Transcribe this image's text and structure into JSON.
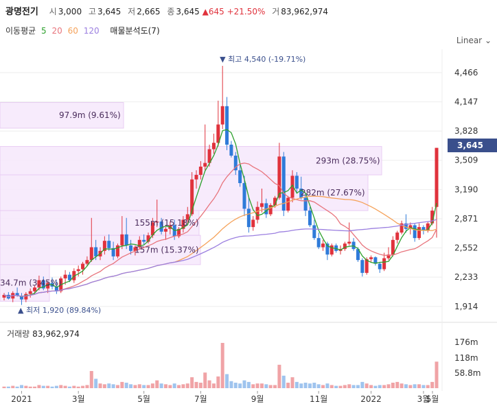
{
  "header": {
    "name": "광명전기",
    "open_label": "시",
    "open": "3,000",
    "high_label": "고",
    "high": "3,645",
    "low_label": "저",
    "low": "2,665",
    "close_label": "종",
    "close": "3,645",
    "change": "▲645",
    "change_pct": "+21.50%",
    "volume_label": "거",
    "volume": "83,962,974"
  },
  "ma_bar": {
    "label": "이동평균",
    "periods": [
      {
        "text": "5",
        "color": "#2ca02c"
      },
      {
        "text": "20",
        "color": "#e8747c"
      },
      {
        "text": "60",
        "color": "#f5a25a"
      },
      {
        "text": "120",
        "color": "#9b7fe0"
      }
    ],
    "extra": "매물분석도(7)"
  },
  "scale_mode": "Linear",
  "current_price": "3,645",
  "volume_panel": {
    "label": "거래량",
    "value": "83,962,974"
  },
  "chart_data": {
    "type": "candlestick",
    "y_ticks": [
      "4,466",
      "4,147",
      "3,828",
      "3,509",
      "3,190",
      "2,871",
      "2,552",
      "2,233",
      "1,914"
    ],
    "ylim": [
      1800,
      4720
    ],
    "x_ticks": [
      "2021",
      "3월",
      "5월",
      "7월",
      "9월",
      "11월",
      "2022",
      "3월",
      "5월"
    ],
    "volume_ticks": [
      "176m",
      "118m",
      "58.8m"
    ],
    "annotations": {
      "high": "최고 4,540 (-19.71%)",
      "low": "최저 1,920 (89.84%)"
    },
    "volume_profile": [
      {
        "label": "97.9m (9.61%)",
        "price_low": 3860,
        "price_high": 4140
      },
      {
        "label": "293m (28.75%)",
        "price_low": 3350,
        "price_high": 3660
      },
      {
        "label": "282m (27.67%)",
        "price_low": 2960,
        "price_high": 3350
      },
      {
        "label": "155m (15.18%)",
        "price_low": 2690,
        "price_high": 2960
      },
      {
        "label": "157m (15.37%)",
        "price_low": 2370,
        "price_high": 2690
      },
      {
        "label": "34.7m (3.45%)",
        "price_low": 1970,
        "price_high": 2370
      }
    ],
    "candles": [
      [
        2010,
        2060,
        1980,
        2040
      ],
      [
        2040,
        2070,
        1990,
        2000
      ],
      [
        2000,
        2080,
        1960,
        2060
      ],
      [
        2060,
        2120,
        2020,
        2030
      ],
      [
        2030,
        2060,
        1930,
        1990
      ],
      [
        1990,
        2070,
        1960,
        2050
      ],
      [
        2050,
        2110,
        2010,
        2080
      ],
      [
        2080,
        2140,
        2050,
        2120
      ],
      [
        2120,
        2250,
        2090,
        2200
      ],
      [
        2200,
        2240,
        2090,
        2110
      ],
      [
        2110,
        2190,
        2060,
        2170
      ],
      [
        2170,
        2230,
        2100,
        2130
      ],
      [
        2130,
        2200,
        2050,
        2080
      ],
      [
        2080,
        2240,
        2060,
        2220
      ],
      [
        2220,
        2310,
        2150,
        2260
      ],
      [
        2260,
        2290,
        2180,
        2200
      ],
      [
        2200,
        2330,
        2170,
        2300
      ],
      [
        2300,
        2360,
        2240,
        2320
      ],
      [
        2320,
        2400,
        2260,
        2380
      ],
      [
        2380,
        2460,
        2350,
        2420
      ],
      [
        2420,
        2880,
        2400,
        2560
      ],
      [
        2560,
        2640,
        2420,
        2460
      ],
      [
        2460,
        2560,
        2420,
        2520
      ],
      [
        2520,
        2680,
        2480,
        2630
      ],
      [
        2630,
        2700,
        2520,
        2550
      ],
      [
        2550,
        2620,
        2420,
        2460
      ],
      [
        2460,
        2600,
        2440,
        2580
      ],
      [
        2580,
        2900,
        2540,
        2700
      ],
      [
        2700,
        2880,
        2540,
        2580
      ],
      [
        2580,
        2640,
        2480,
        2520
      ],
      [
        2520,
        2580,
        2470,
        2560
      ],
      [
        2560,
        2680,
        2540,
        2640
      ],
      [
        2640,
        2700,
        2590,
        2620
      ],
      [
        2620,
        2720,
        2600,
        2690
      ],
      [
        2690,
        2880,
        2660,
        2830
      ],
      [
        2830,
        3080,
        2780,
        2840
      ],
      [
        2840,
        2880,
        2700,
        2730
      ],
      [
        2730,
        2780,
        2640,
        2760
      ],
      [
        2760,
        2840,
        2700,
        2800
      ],
      [
        2800,
        2860,
        2640,
        2680
      ],
      [
        2680,
        2780,
        2660,
        2760
      ],
      [
        2760,
        2900,
        2720,
        2860
      ],
      [
        2860,
        3000,
        2820,
        2920
      ],
      [
        2920,
        3380,
        2900,
        3300
      ],
      [
        3300,
        3400,
        3200,
        3350
      ],
      [
        3350,
        3500,
        3300,
        3440
      ],
      [
        3440,
        3900,
        3400,
        3480
      ],
      [
        3480,
        3680,
        3440,
        3630
      ],
      [
        3630,
        3800,
        3580,
        3700
      ],
      [
        3700,
        4160,
        3660,
        3900
      ],
      [
        3900,
        4540,
        3850,
        4100
      ],
      [
        4100,
        4200,
        3620,
        3680
      ],
      [
        3680,
        3720,
        3540,
        3560
      ],
      [
        3560,
        3600,
        3350,
        3400
      ],
      [
        3400,
        3460,
        3220,
        3260
      ],
      [
        3260,
        3340,
        2900,
        2980
      ],
      [
        2980,
        3100,
        2720,
        2780
      ],
      [
        2780,
        2900,
        2740,
        2860
      ],
      [
        2860,
        3060,
        2820,
        3000
      ],
      [
        3000,
        3200,
        2940,
        3040
      ],
      [
        3040,
        3090,
        2880,
        2920
      ],
      [
        2920,
        3040,
        2900,
        3020
      ],
      [
        3020,
        3120,
        2990,
        3100
      ],
      [
        3100,
        3700,
        3080,
        3550
      ],
      [
        3550,
        3600,
        2900,
        2960
      ],
      [
        2960,
        3120,
        2940,
        3100
      ],
      [
        3100,
        3400,
        3050,
        3340
      ],
      [
        3340,
        3380,
        3160,
        3200
      ],
      [
        3200,
        3330,
        3080,
        3100
      ],
      [
        3100,
        3140,
        2900,
        2960
      ],
      [
        2960,
        3000,
        2780,
        2800
      ],
      [
        2800,
        2860,
        2640,
        2660
      ],
      [
        2660,
        2720,
        2540,
        2560
      ],
      [
        2560,
        2640,
        2520,
        2600
      ],
      [
        2600,
        2620,
        2420,
        2480
      ],
      [
        2480,
        2600,
        2460,
        2580
      ],
      [
        2580,
        2600,
        2500,
        2520
      ],
      [
        2520,
        2580,
        2480,
        2540
      ],
      [
        2540,
        2620,
        2520,
        2600
      ],
      [
        2600,
        2830,
        2580,
        2620
      ],
      [
        2620,
        2660,
        2520,
        2540
      ],
      [
        2540,
        2560,
        2400,
        2420
      ],
      [
        2420,
        2440,
        2240,
        2280
      ],
      [
        2280,
        2450,
        2260,
        2430
      ],
      [
        2430,
        2470,
        2400,
        2450
      ],
      [
        2450,
        2460,
        2360,
        2380
      ],
      [
        2380,
        2400,
        2280,
        2320
      ],
      [
        2320,
        2500,
        2300,
        2440
      ],
      [
        2440,
        2560,
        2420,
        2480
      ],
      [
        2480,
        2680,
        2460,
        2640
      ],
      [
        2640,
        2740,
        2600,
        2720
      ],
      [
        2720,
        2850,
        2700,
        2820
      ],
      [
        2820,
        2920,
        2720,
        2760
      ],
      [
        2760,
        2830,
        2700,
        2800
      ],
      [
        2800,
        2820,
        2620,
        2660
      ],
      [
        2660,
        2820,
        2640,
        2780
      ],
      [
        2780,
        2800,
        2700,
        2740
      ],
      [
        2740,
        2840,
        2720,
        2820
      ],
      [
        2820,
        3000,
        2800,
        2960
      ],
      [
        3000,
        3645,
        2665,
        3645
      ]
    ],
    "volumes": [
      2,
      2,
      3,
      2,
      4,
      3,
      2,
      2,
      4,
      3,
      3,
      2,
      3,
      4,
      3,
      2,
      3,
      2,
      3,
      4,
      22,
      12,
      6,
      5,
      6,
      5,
      4,
      8,
      7,
      5,
      4,
      5,
      4,
      4,
      6,
      10,
      6,
      5,
      4,
      6,
      4,
      5,
      6,
      14,
      8,
      7,
      20,
      10,
      6,
      15,
      58,
      18,
      9,
      7,
      6,
      10,
      8,
      5,
      6,
      6,
      5,
      4,
      4,
      30,
      16,
      7,
      14,
      8,
      6,
      7,
      6,
      7,
      5,
      4,
      6,
      4,
      3,
      3,
      4,
      5,
      4,
      4,
      8,
      6,
      4,
      3,
      4,
      4,
      5,
      7,
      8,
      6,
      5,
      4,
      5,
      5,
      4,
      4,
      8,
      34
    ],
    "moving_averages": [
      {
        "name": "5",
        "color": "#2ca02c"
      },
      {
        "name": "20",
        "color": "#e8747c"
      },
      {
        "name": "60",
        "color": "#f5a25a"
      },
      {
        "name": "120",
        "color": "#9b7fe0"
      }
    ]
  }
}
